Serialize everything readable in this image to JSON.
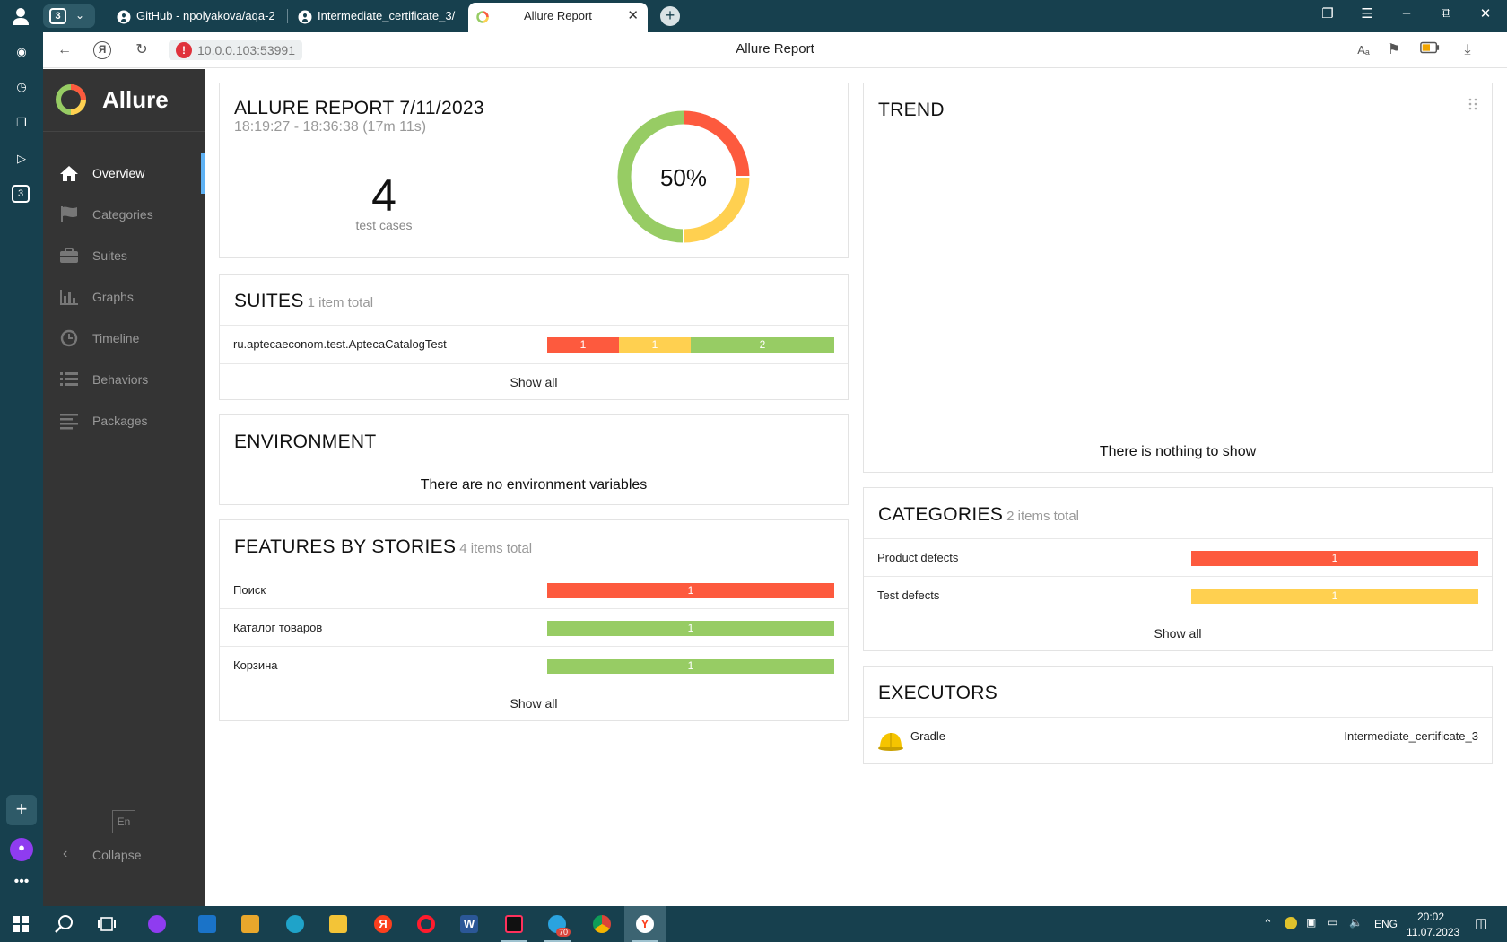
{
  "browser": {
    "tab_count": "3",
    "tabs": [
      {
        "title": "GitHub - npolyakova/aqa-2"
      },
      {
        "title": "Intermediate_certificate_3/"
      },
      {
        "title": "Allure Report"
      }
    ],
    "url": "10.0.0.103:53991",
    "page_title": "Allure Report"
  },
  "sidebar": {
    "brand": "Allure",
    "items": [
      {
        "label": "Overview",
        "icon": "home-icon"
      },
      {
        "label": "Categories",
        "icon": "flag-icon"
      },
      {
        "label": "Suites",
        "icon": "briefcase-icon"
      },
      {
        "label": "Graphs",
        "icon": "bar-chart-icon"
      },
      {
        "label": "Timeline",
        "icon": "clock-icon"
      },
      {
        "label": "Behaviors",
        "icon": "list-icon"
      },
      {
        "label": "Packages",
        "icon": "align-left-icon"
      }
    ],
    "language": "En",
    "collapse_label": "Collapse"
  },
  "summary": {
    "title": "ALLURE REPORT 7/11/2023",
    "time_range": "18:19:27 - 18:36:38 (17m 11s)",
    "test_count": "4",
    "test_count_label": "test cases",
    "percent": "50%",
    "donut": [
      {
        "status": "failed",
        "value": 1
      },
      {
        "status": "broken",
        "value": 1
      },
      {
        "status": "passed",
        "value": 2
      }
    ]
  },
  "suites": {
    "title": "SUITES",
    "subtitle": "1 item total",
    "rows": [
      {
        "name": "ru.aptecaeconom.test.AptecaCatalogTest",
        "failed": "1",
        "broken": "1",
        "passed": "2"
      }
    ],
    "show_all": "Show all"
  },
  "environment": {
    "title": "ENVIRONMENT",
    "empty_text": "There are no environment variables"
  },
  "features": {
    "title": "FEATURES BY STORIES",
    "subtitle": "4 items total",
    "rows": [
      {
        "name": "Поиск",
        "status": "failed",
        "count": "1"
      },
      {
        "name": "Каталог товаров",
        "status": "passed",
        "count": "1"
      },
      {
        "name": "Корзина",
        "status": "passed",
        "count": "1"
      }
    ],
    "show_all": "Show all"
  },
  "trend": {
    "title": "TREND",
    "empty_text": "There is nothing to show"
  },
  "categories": {
    "title": "CATEGORIES",
    "subtitle": "2 items total",
    "rows": [
      {
        "name": "Product defects",
        "status": "failed",
        "count": "1"
      },
      {
        "name": "Test defects",
        "status": "broken",
        "count": "1"
      }
    ],
    "show_all": "Show all"
  },
  "executors": {
    "title": "EXECUTORS",
    "rows": [
      {
        "name": "Gradle",
        "build": "Intermediate_certificate_3"
      }
    ]
  },
  "colors": {
    "failed": "#fd5a3e",
    "broken": "#ffd050",
    "passed": "#97cc64",
    "sidebar": "#343434",
    "browser_frame": "#17404e"
  },
  "taskbar": {
    "apps": [
      "start-icon",
      "search-icon",
      "task-view-icon",
      "alice-icon",
      "mail-icon",
      "store-icon",
      "edge-icon",
      "explorer-icon",
      "yandex-icon",
      "opera-icon",
      "word-icon",
      "intellij-icon",
      "telegram-icon",
      "chrome-icon",
      "yandex-browser-icon"
    ],
    "telegram_badge": "70",
    "language": "ENG",
    "time": "20:02",
    "date": "11.07.2023"
  }
}
